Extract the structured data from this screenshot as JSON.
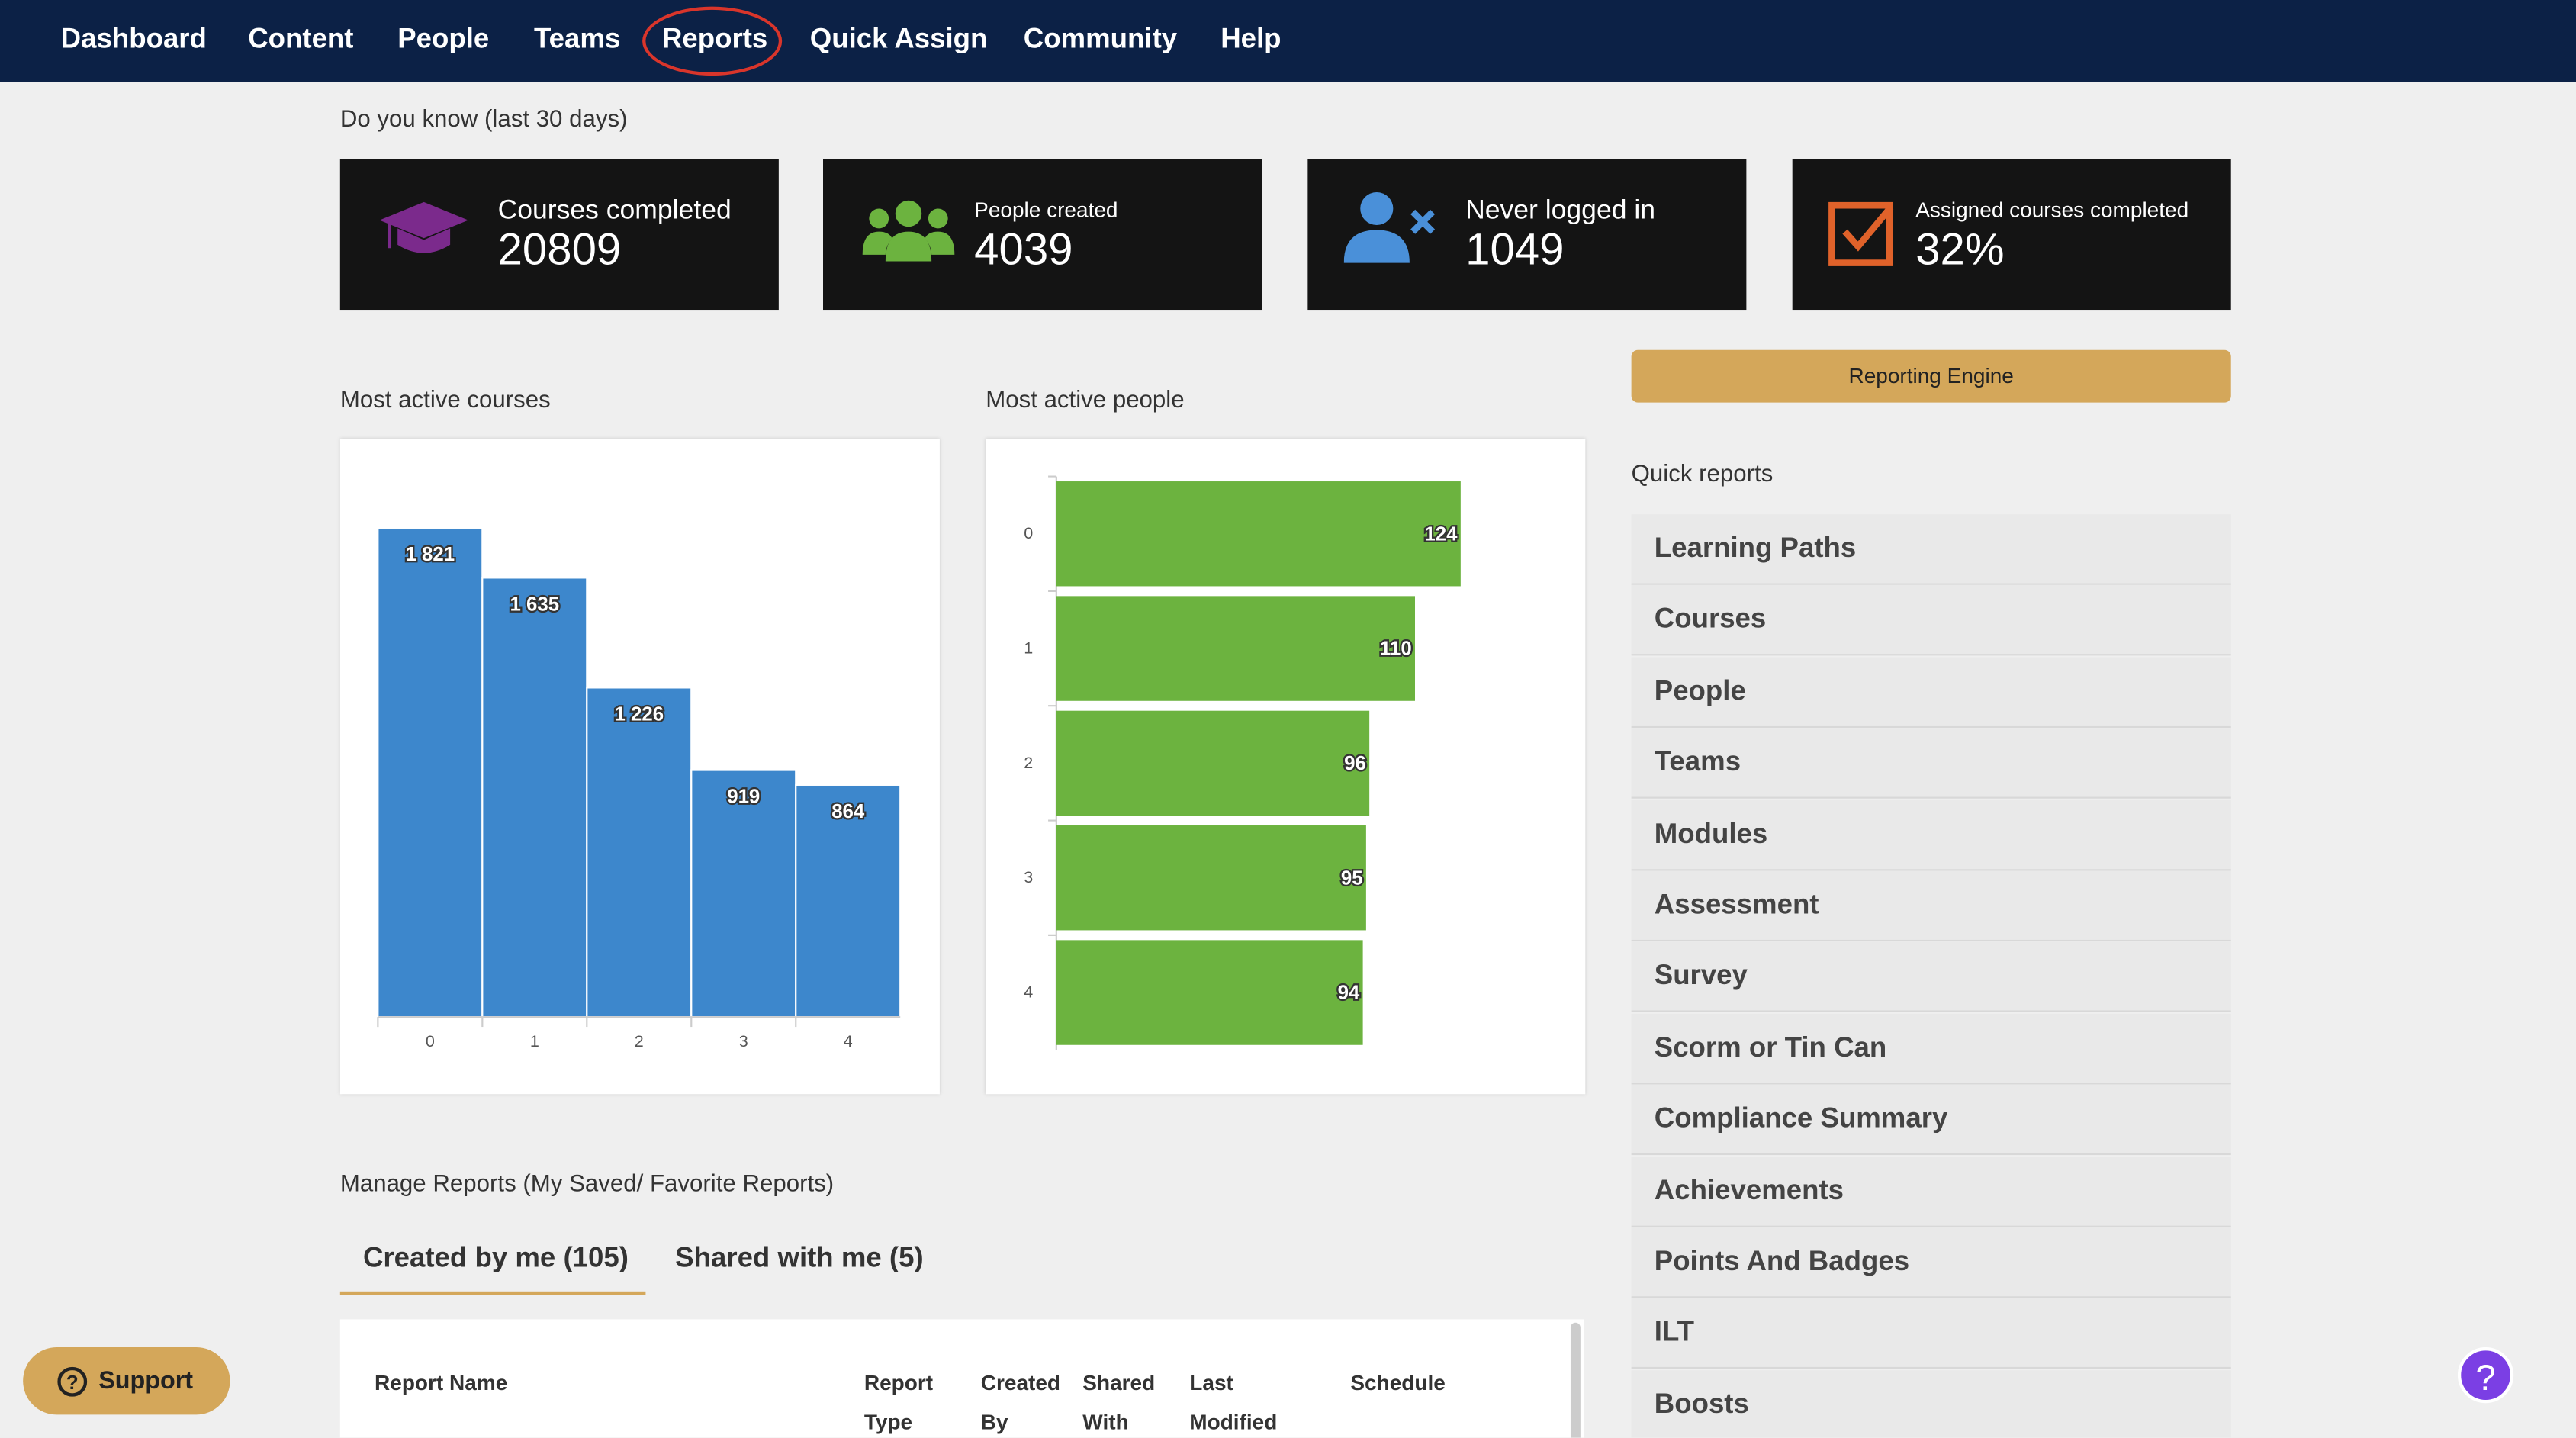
{
  "nav": [
    "Dashboard",
    "Content",
    "People",
    "Teams",
    "Reports",
    "Quick Assign",
    "Community",
    "Help"
  ],
  "stats_title": "Do you know (last 30 days)",
  "stats": [
    {
      "label": "Courses completed",
      "value": "20809"
    },
    {
      "label": "People created",
      "value": "4039"
    },
    {
      "label": "Never logged in",
      "value": "1049"
    },
    {
      "label": "Assigned courses completed",
      "value": "32%"
    }
  ],
  "reporting_engine": "Reporting Engine",
  "quick_reports_title": "Quick reports",
  "quick_reports": [
    "Learning Paths",
    "Courses",
    "People",
    "Teams",
    "Modules",
    "Assessment",
    "Survey",
    "Scorm or Tin Can",
    "Compliance Summary",
    "Achievements",
    "Points And Badges",
    "ILT",
    "Boosts"
  ],
  "manage_title": "Manage Reports (My Saved/ Favorite Reports)",
  "tabs": [
    "Created by me (105)",
    "Shared with me (5)"
  ],
  "table_headers": [
    "Report Name",
    "Report Type",
    "Created By",
    "Shared With",
    "Last Modified",
    "Schedule"
  ],
  "support": "Support",
  "chart_data": [
    {
      "type": "bar",
      "title": "Most active courses",
      "categories": [
        "0",
        "1",
        "2",
        "3",
        "4"
      ],
      "values": [
        1821,
        1635,
        1226,
        919,
        864
      ],
      "value_labels": [
        "1 821",
        "1 635",
        "1 226",
        "919",
        "864"
      ],
      "color": "#3d87cc",
      "ylim": [
        0,
        2000
      ]
    },
    {
      "type": "barh",
      "title": "Most active people",
      "categories": [
        "0",
        "1",
        "2",
        "3",
        "4"
      ],
      "values": [
        124,
        110,
        96,
        95,
        94
      ],
      "color": "#6cb33f",
      "xlim": [
        0,
        130
      ]
    }
  ]
}
